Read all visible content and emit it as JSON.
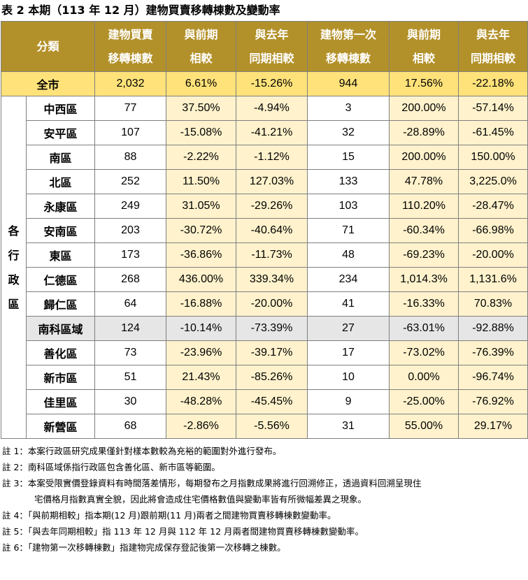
{
  "title": "表 2 本期（113 年 12 月）建物買賣移轉棟數及變動率",
  "headers": {
    "category": "分類",
    "col1a": "建物買賣",
    "col1b": "移轉棟數",
    "col2a": "與前期",
    "col2b": "相較",
    "col3a": "與去年",
    "col3b": "同期相較",
    "col4a": "建物第一次",
    "col4b": "移轉棟數",
    "col5a": "與前期",
    "col5b": "相較",
    "col6a": "與去年",
    "col6b": "同期相較"
  },
  "city": {
    "name": "全市",
    "v": [
      "2,032",
      "6.61%",
      "-15.26%",
      "944",
      "17.56%",
      "-22.18%"
    ]
  },
  "group_label": "各行政區",
  "rows": [
    {
      "name": "中西區",
      "v": [
        "77",
        "37.50%",
        "-4.94%",
        "3",
        "200.00%",
        "-57.14%"
      ]
    },
    {
      "name": "安平區",
      "v": [
        "107",
        "-15.08%",
        "-41.21%",
        "32",
        "-28.89%",
        "-61.45%"
      ]
    },
    {
      "name": "南區",
      "v": [
        "88",
        "-2.22%",
        "-1.12%",
        "15",
        "200.00%",
        "150.00%"
      ]
    },
    {
      "name": "北區",
      "v": [
        "252",
        "11.50%",
        "127.03%",
        "133",
        "47.78%",
        "3,225.0%"
      ]
    },
    {
      "name": "永康區",
      "v": [
        "249",
        "31.05%",
        "-29.26%",
        "103",
        "110.20%",
        "-28.47%"
      ]
    },
    {
      "name": "安南區",
      "v": [
        "203",
        "-30.72%",
        "-40.64%",
        "71",
        "-60.34%",
        "-66.98%"
      ]
    },
    {
      "name": "東區",
      "v": [
        "173",
        "-36.86%",
        "-11.73%",
        "48",
        "-69.23%",
        "-20.00%"
      ]
    },
    {
      "name": "仁德區",
      "v": [
        "268",
        "436.00%",
        "339.34%",
        "234",
        "1,014.3%",
        "1,131.6%"
      ]
    },
    {
      "name": "歸仁區",
      "v": [
        "64",
        "-16.88%",
        "-20.00%",
        "41",
        "-16.33%",
        "70.83%"
      ]
    },
    {
      "name": "南科區域",
      "v": [
        "124",
        "-10.14%",
        "-73.39%",
        "27",
        "-63.01%",
        "-92.88%"
      ]
    },
    {
      "name": "善化區",
      "v": [
        "73",
        "-23.96%",
        "-39.17%",
        "17",
        "-73.02%",
        "-76.39%"
      ]
    },
    {
      "name": "新市區",
      "v": [
        "51",
        "21.43%",
        "-85.26%",
        "10",
        "0.00%",
        "-96.74%"
      ]
    },
    {
      "name": "佳里區",
      "v": [
        "30",
        "-48.28%",
        "-45.45%",
        "9",
        "-25.00%",
        "-76.92%"
      ]
    },
    {
      "name": "新營區",
      "v": [
        "68",
        "-2.86%",
        "-5.56%",
        "31",
        "55.00%",
        "29.17%"
      ]
    }
  ],
  "notes": [
    "註 1：本案行政區研究成果僅針對樣本數較為充裕的範圍對外進行發布。",
    "註 2：南科區域係指行政區包含善化區、新市區等範圍。",
    "註 3：本案受限實價登錄資料有時間落差情形，每期發布之月指數成果將進行回溯修正，透過資料回溯呈現住",
    "宅價格月指數真實全貌，因此將會造成住宅價格數值與變動率皆有所微幅差異之現象。",
    "註 4：「與前期相較」指本期(12 月)跟前期(11 月)兩者之間建物買賣移轉棟數變動率。",
    "註 5：「與去年同期相較」指 113 年 12 月與 112 年 12 月兩者間建物買賣移轉棟數變動率。",
    "註 6：「建物第一次移轉棟數」指建物完成保存登記後第一次移轉之棟數。"
  ],
  "colors": {
    "header_bg": "#b3912a",
    "city_bg": "#ffe27a",
    "change_bg": "#fff2cc",
    "highlight_bg": "#e6e6e6",
    "border": "#7f7f7f"
  }
}
